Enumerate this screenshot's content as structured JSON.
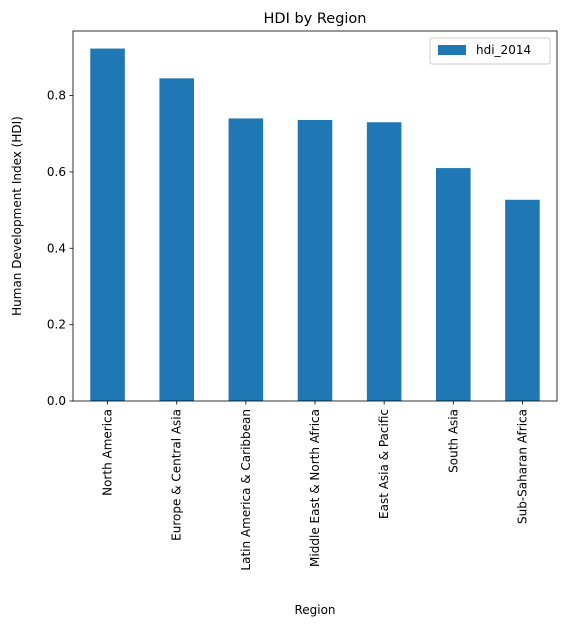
{
  "chart_data": {
    "type": "bar",
    "title": "HDI by Region",
    "xlabel": "Region",
    "ylabel": "Human Development Index (HDI)",
    "categories": [
      "North America",
      "Europe & Central Asia",
      "Latin America & Caribbean",
      "Middle East & North Africa",
      "East Asia & Pacific",
      "South Asia",
      "Sub-Saharan Africa"
    ],
    "series": [
      {
        "name": "hdi_2014",
        "color": "#1f77b4",
        "values": [
          0.923,
          0.845,
          0.74,
          0.736,
          0.73,
          0.61,
          0.527
        ]
      }
    ],
    "ylim": [
      0,
      0.969
    ],
    "yticks": [
      0.0,
      0.2,
      0.4,
      0.6,
      0.8
    ],
    "ytick_labels": [
      "0.0",
      "0.2",
      "0.4",
      "0.6",
      "0.8"
    ],
    "grid": false,
    "legend": "top-right"
  }
}
